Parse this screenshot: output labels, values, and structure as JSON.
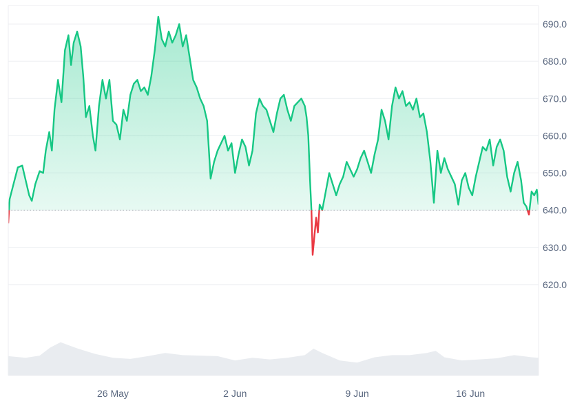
{
  "chart_data": {
    "type": "area",
    "baseline": 640.0,
    "colors": {
      "up": "#16c784",
      "down": "#ea3943",
      "up_fill": "#16c784",
      "grid": "#eceef1",
      "baseline_dots": "#8a9099",
      "axis_text": "#58667e",
      "volume_fill": "#e9ecf0"
    },
    "y_axis": {
      "position": "right",
      "ticks": [
        620.0,
        630.0,
        640.0,
        650.0,
        660.0,
        670.0,
        680.0,
        690.0
      ],
      "tick_labels": [
        "620.0",
        "630.0",
        "640.0",
        "650.0",
        "660.0",
        "670.0",
        "680.0",
        "690.0"
      ],
      "ylim": [
        610,
        695
      ]
    },
    "x_axis": {
      "xlim": [
        0,
        30.4
      ],
      "ticks": [
        6,
        13,
        20,
        26.5
      ],
      "tick_labels": [
        "26 May",
        "2 Jun",
        "9 Jun",
        "16 Jun"
      ]
    },
    "grid": "horizontal",
    "price_points": [
      [
        0.0,
        636.5
      ],
      [
        0.08,
        643.0
      ],
      [
        0.3,
        647.0
      ],
      [
        0.55,
        651.5
      ],
      [
        0.8,
        652.0
      ],
      [
        1.0,
        648.0
      ],
      [
        1.2,
        644.0
      ],
      [
        1.35,
        642.5
      ],
      [
        1.55,
        647.0
      ],
      [
        1.8,
        650.5
      ],
      [
        2.0,
        650.0
      ],
      [
        2.15,
        656.0
      ],
      [
        2.35,
        661.0
      ],
      [
        2.5,
        656.0
      ],
      [
        2.65,
        667.0
      ],
      [
        2.85,
        675.0
      ],
      [
        3.05,
        669.0
      ],
      [
        3.25,
        683.0
      ],
      [
        3.45,
        687.0
      ],
      [
        3.6,
        679.0
      ],
      [
        3.75,
        685.0
      ],
      [
        3.95,
        688.0
      ],
      [
        4.15,
        684.0
      ],
      [
        4.3,
        676.0
      ],
      [
        4.45,
        665.0
      ],
      [
        4.65,
        668.0
      ],
      [
        4.85,
        660.0
      ],
      [
        5.0,
        656.0
      ],
      [
        5.2,
        668.0
      ],
      [
        5.4,
        675.0
      ],
      [
        5.6,
        670.0
      ],
      [
        5.8,
        675.0
      ],
      [
        6.0,
        664.0
      ],
      [
        6.2,
        663.0
      ],
      [
        6.4,
        659.0
      ],
      [
        6.6,
        667.0
      ],
      [
        6.8,
        664.0
      ],
      [
        7.0,
        671.0
      ],
      [
        7.2,
        674.0
      ],
      [
        7.4,
        675.0
      ],
      [
        7.6,
        672.0
      ],
      [
        7.8,
        673.0
      ],
      [
        8.0,
        671.0
      ],
      [
        8.2,
        676.0
      ],
      [
        8.4,
        683.0
      ],
      [
        8.6,
        692.0
      ],
      [
        8.8,
        686.0
      ],
      [
        9.0,
        684.0
      ],
      [
        9.2,
        688.0
      ],
      [
        9.4,
        685.0
      ],
      [
        9.6,
        687.0
      ],
      [
        9.8,
        690.0
      ],
      [
        10.0,
        684.0
      ],
      [
        10.2,
        687.0
      ],
      [
        10.4,
        681.0
      ],
      [
        10.6,
        675.0
      ],
      [
        10.8,
        673.0
      ],
      [
        11.0,
        670.0
      ],
      [
        11.2,
        668.0
      ],
      [
        11.4,
        664.0
      ],
      [
        11.6,
        648.5
      ],
      [
        11.8,
        653.0
      ],
      [
        12.0,
        656.0
      ],
      [
        12.2,
        658.0
      ],
      [
        12.4,
        660.0
      ],
      [
        12.6,
        656.0
      ],
      [
        12.8,
        658.0
      ],
      [
        13.0,
        650.0
      ],
      [
        13.2,
        655.0
      ],
      [
        13.4,
        659.0
      ],
      [
        13.6,
        657.0
      ],
      [
        13.8,
        652.0
      ],
      [
        14.0,
        656.0
      ],
      [
        14.2,
        666.0
      ],
      [
        14.4,
        670.0
      ],
      [
        14.6,
        668.0
      ],
      [
        14.8,
        667.0
      ],
      [
        15.0,
        664.0
      ],
      [
        15.2,
        661.0
      ],
      [
        15.4,
        666.0
      ],
      [
        15.6,
        670.0
      ],
      [
        15.8,
        671.0
      ],
      [
        16.0,
        667.0
      ],
      [
        16.2,
        664.0
      ],
      [
        16.4,
        668.0
      ],
      [
        16.6,
        669.0
      ],
      [
        16.8,
        670.0
      ],
      [
        17.0,
        668.0
      ],
      [
        17.1,
        665.0
      ],
      [
        17.2,
        660.0
      ],
      [
        17.3,
        648.0
      ],
      [
        17.38,
        640.0
      ],
      [
        17.45,
        628.0
      ],
      [
        17.55,
        633.0
      ],
      [
        17.65,
        638.0
      ],
      [
        17.75,
        634.0
      ],
      [
        17.85,
        641.5
      ],
      [
        18.0,
        640.0
      ],
      [
        18.2,
        645.0
      ],
      [
        18.4,
        650.0
      ],
      [
        18.6,
        647.0
      ],
      [
        18.8,
        644.0
      ],
      [
        19.0,
        647.0
      ],
      [
        19.2,
        649.0
      ],
      [
        19.4,
        653.0
      ],
      [
        19.6,
        651.0
      ],
      [
        19.8,
        649.0
      ],
      [
        20.0,
        651.0
      ],
      [
        20.2,
        654.0
      ],
      [
        20.4,
        656.0
      ],
      [
        20.6,
        653.0
      ],
      [
        20.8,
        650.0
      ],
      [
        21.0,
        655.0
      ],
      [
        21.2,
        659.0
      ],
      [
        21.4,
        667.0
      ],
      [
        21.6,
        664.0
      ],
      [
        21.8,
        659.0
      ],
      [
        22.0,
        668.0
      ],
      [
        22.2,
        673.0
      ],
      [
        22.4,
        670.0
      ],
      [
        22.6,
        672.0
      ],
      [
        22.8,
        668.0
      ],
      [
        23.0,
        669.0
      ],
      [
        23.2,
        667.0
      ],
      [
        23.4,
        670.0
      ],
      [
        23.6,
        665.0
      ],
      [
        23.8,
        666.0
      ],
      [
        24.0,
        661.0
      ],
      [
        24.2,
        653.0
      ],
      [
        24.4,
        642.0
      ],
      [
        24.6,
        656.0
      ],
      [
        24.8,
        650.0
      ],
      [
        25.0,
        654.0
      ],
      [
        25.2,
        651.0
      ],
      [
        25.4,
        649.0
      ],
      [
        25.6,
        647.0
      ],
      [
        25.8,
        641.5
      ],
      [
        26.0,
        648.0
      ],
      [
        26.2,
        650.0
      ],
      [
        26.4,
        646.0
      ],
      [
        26.6,
        644.0
      ],
      [
        26.8,
        649.0
      ],
      [
        27.0,
        653.0
      ],
      [
        27.2,
        657.0
      ],
      [
        27.4,
        656.0
      ],
      [
        27.6,
        659.0
      ],
      [
        27.8,
        652.0
      ],
      [
        28.0,
        657.0
      ],
      [
        28.2,
        659.0
      ],
      [
        28.4,
        656.0
      ],
      [
        28.6,
        649.0
      ],
      [
        28.8,
        645.0
      ],
      [
        29.0,
        650.0
      ],
      [
        29.2,
        653.0
      ],
      [
        29.4,
        648.0
      ],
      [
        29.55,
        642.0
      ],
      [
        29.7,
        641.0
      ],
      [
        29.85,
        638.8
      ],
      [
        30.0,
        645.0
      ],
      [
        30.15,
        644.0
      ],
      [
        30.3,
        645.5
      ],
      [
        30.4,
        641.5
      ]
    ],
    "volume_points": [
      [
        0.0,
        0.36
      ],
      [
        1.0,
        0.33
      ],
      [
        1.8,
        0.37
      ],
      [
        2.4,
        0.52
      ],
      [
        3.0,
        0.62
      ],
      [
        3.5,
        0.56
      ],
      [
        4.0,
        0.5
      ],
      [
        5.0,
        0.4
      ],
      [
        6.0,
        0.33
      ],
      [
        7.0,
        0.31
      ],
      [
        8.0,
        0.36
      ],
      [
        9.0,
        0.42
      ],
      [
        10.0,
        0.38
      ],
      [
        11.0,
        0.37
      ],
      [
        12.0,
        0.36
      ],
      [
        13.0,
        0.28
      ],
      [
        14.0,
        0.33
      ],
      [
        15.0,
        0.3
      ],
      [
        16.0,
        0.33
      ],
      [
        17.0,
        0.38
      ],
      [
        17.5,
        0.5
      ],
      [
        18.0,
        0.42
      ],
      [
        19.0,
        0.28
      ],
      [
        20.0,
        0.24
      ],
      [
        21.0,
        0.34
      ],
      [
        22.0,
        0.38
      ],
      [
        23.0,
        0.38
      ],
      [
        24.0,
        0.42
      ],
      [
        24.5,
        0.46
      ],
      [
        25.0,
        0.34
      ],
      [
        26.0,
        0.28
      ],
      [
        27.0,
        0.3
      ],
      [
        28.0,
        0.32
      ],
      [
        29.0,
        0.38
      ],
      [
        30.0,
        0.34
      ],
      [
        30.4,
        0.33
      ]
    ]
  }
}
